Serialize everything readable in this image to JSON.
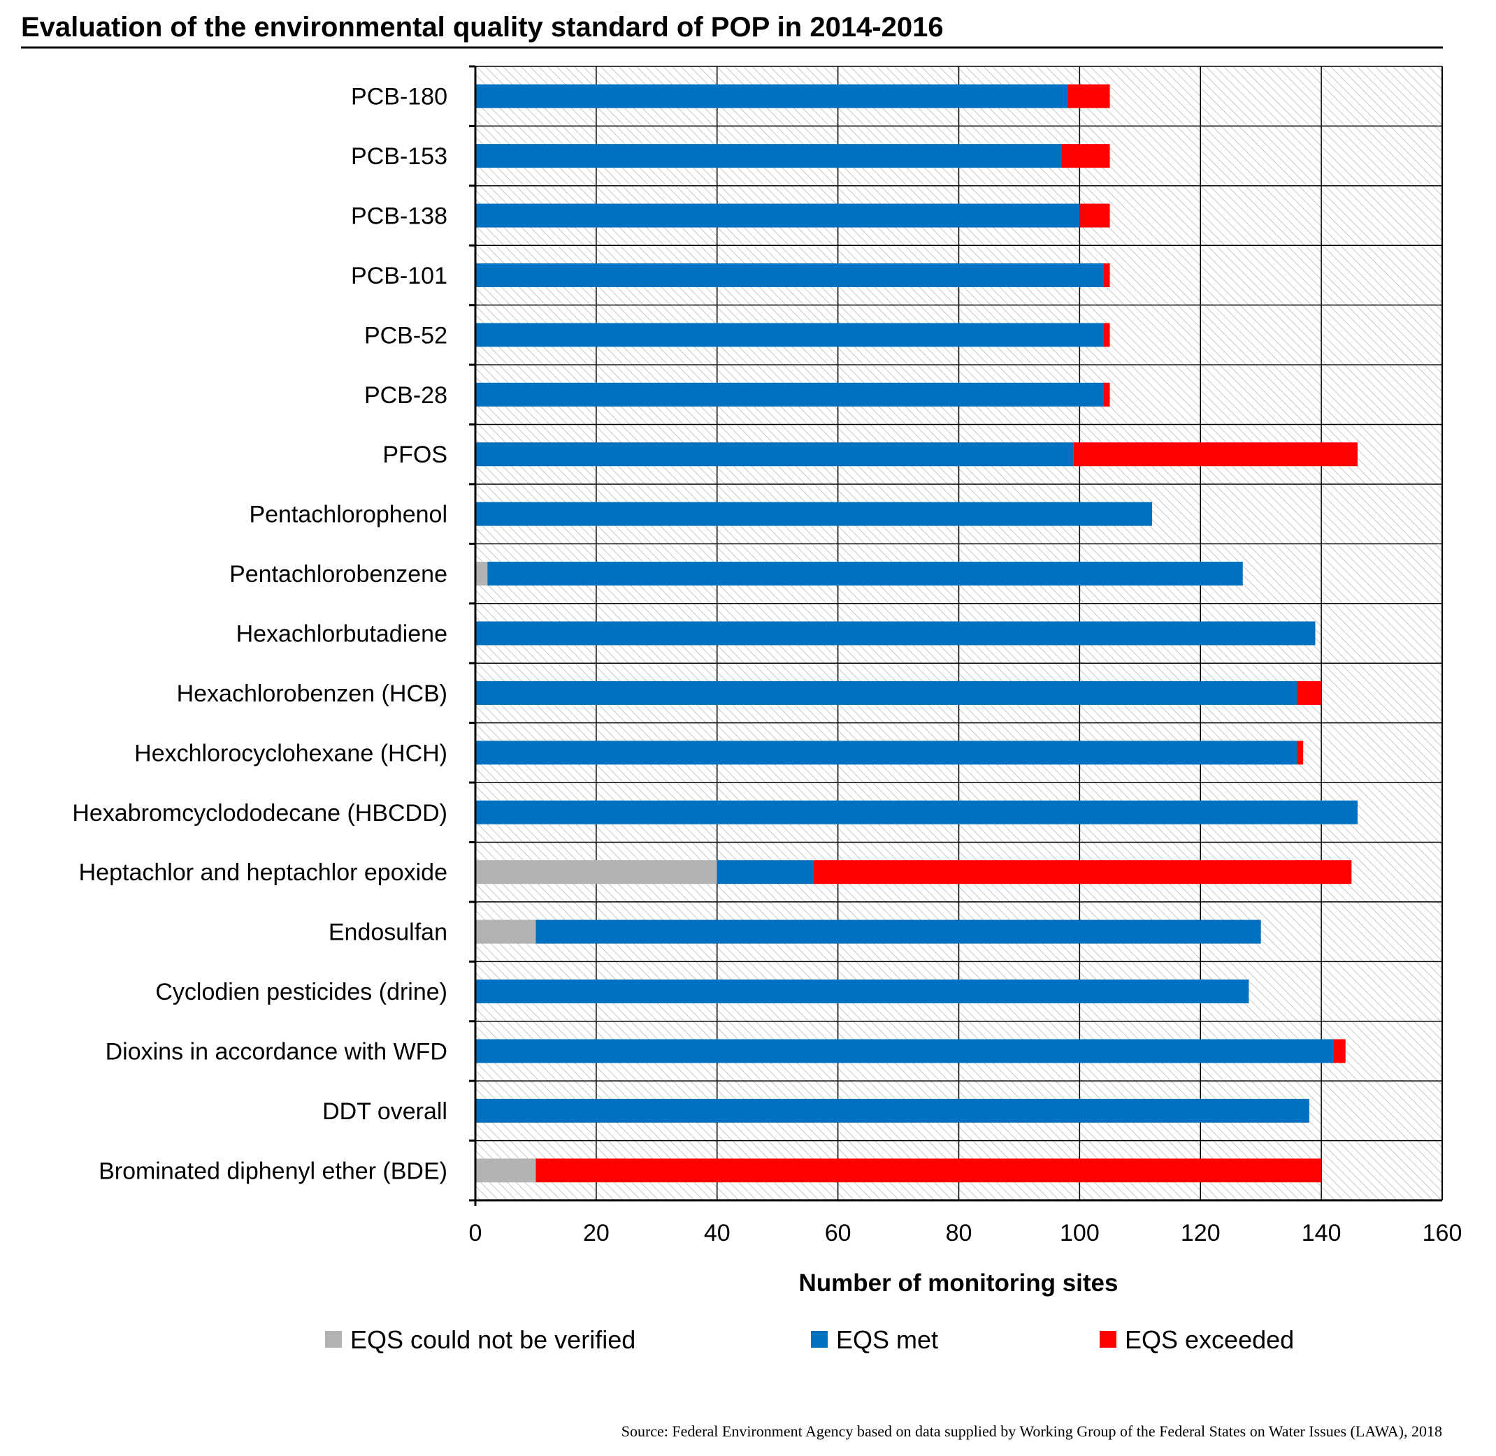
{
  "chart_data": {
    "type": "bar",
    "orientation": "horizontal",
    "stacked": true,
    "title": "Evaluation of the environmental quality standard of POP in 2014-2016",
    "xlabel": "Number of monitoring sites",
    "ylabel": "",
    "xlim": [
      0,
      160
    ],
    "x_ticks": [
      0,
      20,
      40,
      60,
      80,
      100,
      120,
      140,
      160
    ],
    "grid": true,
    "legend_position": "bottom",
    "categories": [
      "PCB-180",
      "PCB-153",
      "PCB-138",
      "PCB-101",
      "PCB-52",
      "PCB-28",
      "PFOS",
      "Pentachlorophenol",
      "Pentachlorobenzene",
      "Hexachlorbutadiene",
      "Hexachlorobenzen (HCB)",
      "Hexchlorocyclohexane (HCH)",
      "Hexabromcyclododecane (HBCDD)",
      "Heptachlor and heptachlor epoxide",
      "Endosulfan",
      "Cyclodien pesticides (drine)",
      "Dioxins in accordance with WFD",
      "DDT overall",
      "Brominated diphenyl ether (BDE)"
    ],
    "series": [
      {
        "name": "EQS could not be verified",
        "color": "#b3b3b3",
        "values": [
          0,
          0,
          0,
          0,
          0,
          0,
          0,
          0,
          2,
          0,
          0,
          0,
          0,
          40,
          10,
          0,
          0,
          0,
          10
        ]
      },
      {
        "name": "EQS met",
        "color": "#0070c0",
        "values": [
          98,
          97,
          100,
          104,
          104,
          104,
          99,
          112,
          125,
          139,
          136,
          136,
          146,
          16,
          120,
          128,
          142,
          138,
          0
        ]
      },
      {
        "name": "EQS exceeded",
        "color": "#ff0000",
        "values": [
          7,
          8,
          5,
          1,
          1,
          1,
          47,
          0,
          0,
          0,
          4,
          1,
          0,
          89,
          0,
          0,
          2,
          0,
          130
        ]
      }
    ],
    "source": "Source: Federal Environment Agency based on data supplied by Working Group of the Federal States on Water Issues (LAWA), 2018"
  }
}
